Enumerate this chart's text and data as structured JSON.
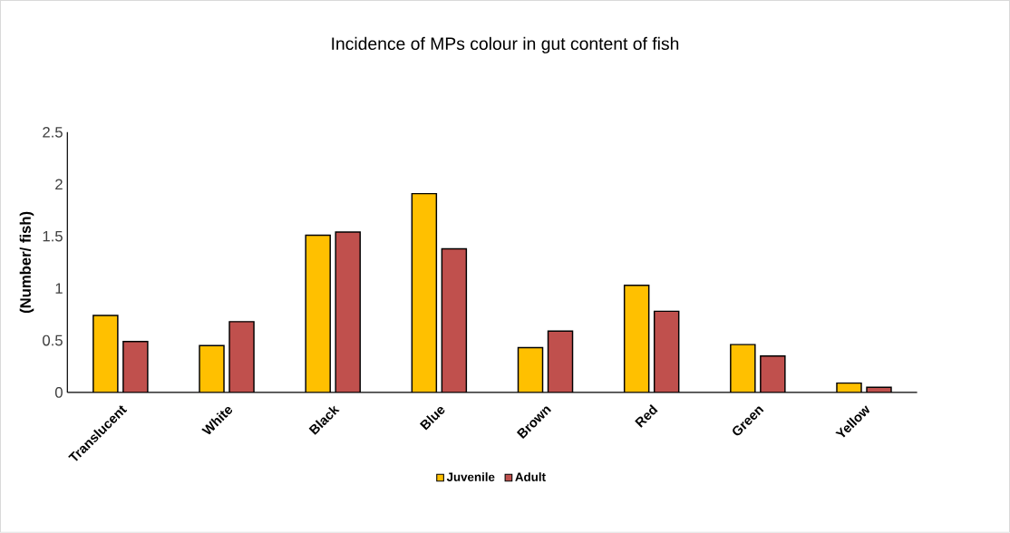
{
  "chart_data": {
    "type": "bar",
    "title": "Incidence of MPs colour in  gut content of fish",
    "ylabel": "(Number/ fish)",
    "categories": [
      "Translucent",
      "White",
      "Black",
      "Blue",
      "Brown",
      "Red",
      "Green",
      "Yellow"
    ],
    "series": [
      {
        "name": "Juvenile",
        "color": "#ffc000",
        "values": [
          0.74,
          0.45,
          1.51,
          1.91,
          0.43,
          1.03,
          0.46,
          0.09
        ]
      },
      {
        "name": "Adult",
        "color": "#c0504d",
        "values": [
          0.49,
          0.68,
          1.54,
          1.38,
          0.59,
          0.78,
          0.35,
          0.05
        ]
      }
    ],
    "ylim": [
      0,
      2.5
    ],
    "yticks": [
      0,
      0.5,
      1,
      1.5,
      2,
      2.5
    ],
    "legend": "bottom"
  }
}
